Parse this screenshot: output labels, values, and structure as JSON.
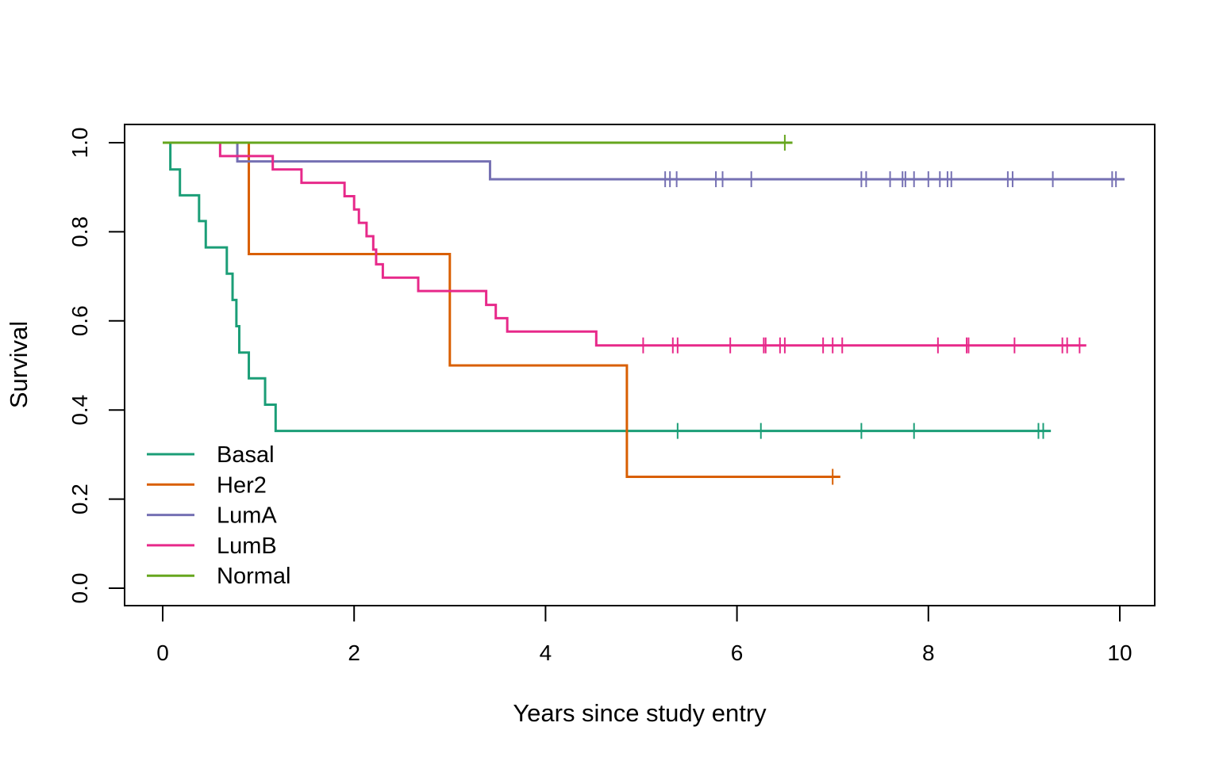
{
  "chart_data": {
    "type": "line",
    "step": true,
    "title": "",
    "xlabel": "Years since study entry",
    "ylabel": "Survival",
    "xlim": [
      0,
      10
    ],
    "ylim": [
      0,
      1
    ],
    "x_ticks": [
      0,
      2,
      4,
      6,
      8,
      10
    ],
    "y_ticks": [
      0.0,
      0.2,
      0.4,
      0.6,
      0.8,
      1.0
    ],
    "x_tick_labels": [
      "0",
      "2",
      "4",
      "6",
      "8",
      "10"
    ],
    "y_tick_labels": [
      "0.0",
      "0.2",
      "0.4",
      "0.6",
      "0.8",
      "1.0"
    ],
    "grid": false,
    "legend": {
      "position": "bottom-left"
    },
    "series": [
      {
        "name": "Basal",
        "color": "#1b9e77",
        "steps": [
          [
            0,
            1.0
          ],
          [
            0.08,
            0.94
          ],
          [
            0.18,
            0.882
          ],
          [
            0.38,
            0.824
          ],
          [
            0.45,
            0.765
          ],
          [
            0.67,
            0.706
          ],
          [
            0.73,
            0.647
          ],
          [
            0.77,
            0.588
          ],
          [
            0.8,
            0.529
          ],
          [
            0.9,
            0.471
          ],
          [
            1.07,
            0.412
          ],
          [
            1.18,
            0.353
          ]
        ],
        "end": 9.28,
        "censor": [
          5.38,
          6.25,
          7.3,
          7.85,
          9.15,
          9.2
        ]
      },
      {
        "name": "Her2",
        "color": "#d95f02",
        "steps": [
          [
            0,
            1.0
          ],
          [
            0.9,
            0.75
          ],
          [
            3.0,
            0.5
          ],
          [
            4.85,
            0.25
          ]
        ],
        "end": 7.08,
        "censor": [
          7.0
        ]
      },
      {
        "name": "LumA",
        "color": "#7570b3",
        "steps": [
          [
            0,
            1.0
          ],
          [
            0.78,
            0.958
          ],
          [
            3.42,
            0.918
          ]
        ],
        "end": 10.05,
        "censor": [
          5.25,
          5.3,
          5.37,
          5.78,
          5.85,
          6.15,
          7.3,
          7.35,
          7.6,
          7.73,
          7.76,
          7.85,
          8.0,
          8.12,
          8.2,
          8.24,
          8.83,
          8.88,
          9.3,
          9.92,
          9.96
        ]
      },
      {
        "name": "LumB",
        "color": "#e7298a",
        "steps": [
          [
            0,
            1.0
          ],
          [
            0.6,
            0.97
          ],
          [
            0.92,
            0.97
          ],
          [
            1.15,
            0.94
          ],
          [
            1.45,
            0.91
          ],
          [
            1.9,
            0.88
          ],
          [
            2.0,
            0.85
          ],
          [
            2.05,
            0.82
          ],
          [
            2.13,
            0.79
          ],
          [
            2.2,
            0.76
          ],
          [
            2.23,
            0.727
          ],
          [
            2.3,
            0.697
          ],
          [
            2.67,
            0.667
          ],
          [
            3.38,
            0.636
          ],
          [
            3.48,
            0.606
          ],
          [
            3.6,
            0.576
          ],
          [
            4.53,
            0.545
          ]
        ],
        "end": 9.65,
        "censor": [
          5.02,
          5.33,
          5.38,
          5.93,
          6.28,
          6.3,
          6.45,
          6.5,
          6.9,
          7.0,
          7.1,
          8.1,
          8.4,
          8.42,
          8.9,
          9.4,
          9.45,
          9.58
        ]
      },
      {
        "name": "Normal",
        "color": "#66a61e",
        "steps": [
          [
            0,
            1.0
          ]
        ],
        "end": 6.58,
        "censor": [
          6.5
        ]
      }
    ]
  }
}
